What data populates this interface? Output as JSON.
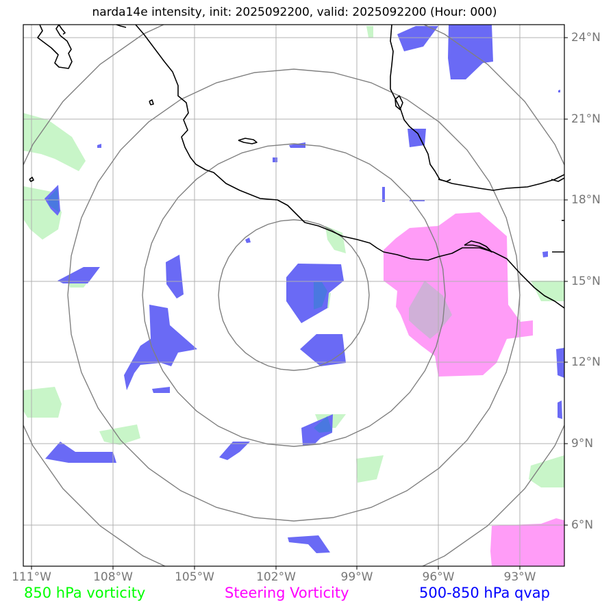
{
  "title": "narda14e intensity, init: 2025092200, valid: 2025092200 (Hour: 000)",
  "map": {
    "lon_labels": [
      "111°W",
      "108°W",
      "105°W",
      "102°W",
      "99°W",
      "96°W",
      "93°W"
    ],
    "lat_labels": [
      "24°N",
      "21°N",
      "18°N",
      "15°N",
      "12°N",
      "9°N",
      "6°N"
    ],
    "range_rings": 4,
    "colors": {
      "vorticity_850": "#c8f5c8",
      "steering_vorticity": "#ff9cf7",
      "qvap": "#6a6af5",
      "coastline": "#000000",
      "grid": "#b0b0b0",
      "rings": "#808080"
    }
  },
  "legend": {
    "vort850": "850 hPa vorticity",
    "steering": "Steering Vorticity",
    "qvap": "500-850 hPa qvap",
    "vort850_color": "#00ff00",
    "steering_color": "#ff00ff",
    "qvap_color": "#0000ff"
  }
}
